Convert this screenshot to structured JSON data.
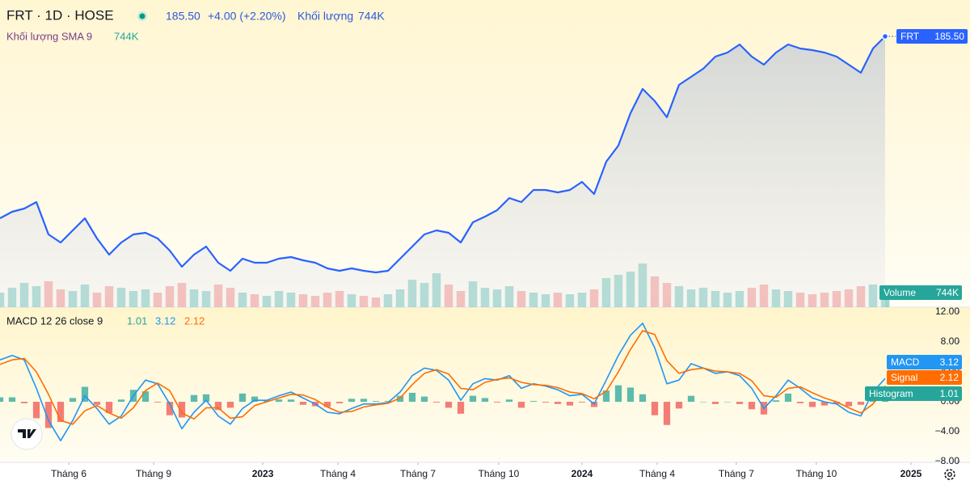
{
  "header": {
    "symbol": "FRT · 1D · HOSE",
    "price": "185.50",
    "change": "+4.00 (+2.20%)",
    "volume_label": "Khối lượng",
    "volume": "744K",
    "sma_label": "Khối lượng SMA 9",
    "sma_value": "744K"
  },
  "chart_data": [
    {
      "type": "area",
      "name": "FRT",
      "color": "#2962ff",
      "xlim": [
        0,
        80
      ],
      "ylim": [
        51.5,
        203.5
      ],
      "values": [
        95.5,
        98.7,
        100.3,
        103.5,
        87.5,
        83.5,
        89.5,
        95.5,
        85.5,
        77.5,
        83.5,
        87.5,
        88.3,
        85.5,
        79.5,
        71.5,
        77.5,
        81.5,
        73.5,
        69.5,
        75.5,
        73.5,
        73.5,
        75.5,
        76.3,
        74.7,
        73.5,
        70.7,
        69.5,
        70.7,
        69.5,
        68.7,
        69.5,
        75.5,
        81.5,
        87.5,
        89.5,
        88.3,
        83.5,
        93.5,
        96.3,
        99.5,
        105.5,
        103.5,
        109.5,
        109.5,
        108.3,
        109.5,
        113.5,
        107.5,
        123.5,
        131.5,
        147.5,
        159.5,
        153.5,
        145.5,
        161.5,
        165.5,
        169.5,
        175.5,
        177.5,
        181.5,
        175.5,
        171.5,
        177.5,
        181.5,
        179.5,
        178.7,
        177.5,
        175.5,
        171.5,
        167.5,
        179.5,
        185.5
      ]
    },
    {
      "type": "volume",
      "name": "Volume",
      "color": "#26a69a",
      "negative_color": "#ef5350",
      "xlim": [
        0,
        80
      ],
      "ylim": [
        0,
        5000000
      ],
      "values": [
        900000,
        1200000,
        1500000,
        1300000,
        1600000,
        1100000,
        1000000,
        1400000,
        900000,
        1300000,
        1200000,
        1000000,
        1100000,
        900000,
        1300000,
        1500000,
        1100000,
        1000000,
        1400000,
        1200000,
        900000,
        800000,
        700000,
        1000000,
        900000,
        800000,
        700000,
        900000,
        1000000,
        800000,
        700000,
        600000,
        800000,
        1100000,
        1700000,
        1500000,
        2100000,
        1400000,
        1000000,
        1600000,
        1200000,
        1100000,
        1300000,
        1000000,
        900000,
        800000,
        900000,
        800000,
        900000,
        1100000,
        1800000,
        2000000,
        2200000,
        2700000,
        1900000,
        1500000,
        1300000,
        1100000,
        1200000,
        1000000,
        900000,
        1000000,
        1200000,
        1400000,
        1100000,
        1000000,
        900000,
        800000,
        900000,
        1000000,
        1100000,
        1300000,
        1400000,
        744000
      ]
    },
    {
      "type": "macd",
      "title": "MACD 12 26 close 9",
      "xlim": [
        0,
        80
      ],
      "ylim": [
        -8.1,
        12.65
      ],
      "yticks": [
        {
          "value": 12,
          "label": "12.00"
        },
        {
          "value": 8,
          "label": "8.00"
        },
        {
          "value": 4,
          "label": "4.00"
        },
        {
          "value": 0,
          "label": "0.00"
        },
        {
          "value": -4,
          "label": "−4.00"
        },
        {
          "value": -8,
          "label": "−8.00"
        }
      ],
      "xticks": [
        {
          "value": 5.67,
          "label": "Tháng 6"
        },
        {
          "value": 12.67,
          "label": "Tháng 9"
        },
        {
          "value": 21.67,
          "label": "2023"
        },
        {
          "value": 27.87,
          "label": "Tháng 4"
        },
        {
          "value": 34.47,
          "label": "Tháng 7"
        },
        {
          "value": 41.13,
          "label": "Tháng 10"
        },
        {
          "value": 48,
          "label": "2024"
        },
        {
          "value": 54.2,
          "label": "Tháng 4"
        },
        {
          "value": 60.73,
          "label": "Tháng 7"
        },
        {
          "value": 67.33,
          "label": "Tháng 10"
        },
        {
          "value": 75.13,
          "label": "2025"
        }
      ],
      "series": [
        {
          "name": "MACD",
          "color": "#2196f3",
          "values": [
            5.6,
            6.2,
            5.6,
            1.8,
            -2.5,
            -5.2,
            -2.5,
            0.8,
            -0.9,
            -3.0,
            -1.9,
            0.8,
            2.9,
            2.4,
            -0.3,
            -3.6,
            -1.4,
            0.2,
            -1.9,
            -3.0,
            -0.9,
            0.2,
            0.2,
            0.8,
            1.3,
            0.5,
            -0.3,
            -1.4,
            -1.6,
            -0.9,
            -0.3,
            -0.3,
            -0.1,
            1.3,
            3.5,
            4.5,
            4.2,
            2.9,
            0.2,
            2.4,
            3.1,
            2.9,
            3.5,
            1.8,
            2.4,
            2.1,
            1.6,
            0.8,
            1.0,
            -0.3,
            2.9,
            6.2,
            8.9,
            10.5,
            7.2,
            2.4,
            2.9,
            5.1,
            4.5,
            3.8,
            4.0,
            3.5,
            1.8,
            -0.9,
            0.8,
            2.9,
            1.8,
            0.5,
            0.0,
            -0.3,
            -1.4,
            -1.9,
            1.3,
            3.12
          ]
        },
        {
          "name": "Signal",
          "color": "#ff6d00",
          "values": [
            5.0,
            5.6,
            5.8,
            4.0,
            1.0,
            -2.5,
            -3.0,
            -1.2,
            -0.5,
            -1.5,
            -2.2,
            -0.8,
            1.5,
            2.5,
            1.5,
            -1.5,
            -2.3,
            -0.8,
            -0.8,
            -2.2,
            -2.0,
            -0.5,
            0.0,
            0.5,
            1.0,
            0.9,
            0.3,
            -0.7,
            -1.4,
            -1.3,
            -0.7,
            -0.4,
            -0.2,
            0.5,
            2.3,
            3.8,
            4.3,
            3.7,
            1.8,
            1.6,
            2.6,
            3.0,
            3.2,
            2.6,
            2.3,
            2.2,
            1.9,
            1.3,
            1.1,
            0.4,
            1.4,
            4.0,
            7.0,
            9.5,
            9.0,
            5.5,
            3.8,
            4.3,
            4.5,
            4.1,
            4.0,
            3.8,
            2.8,
            0.8,
            0.6,
            1.8,
            2.0,
            1.2,
            0.5,
            0.0,
            -0.8,
            -1.5,
            -0.3,
            2.12
          ]
        },
        {
          "name": "Histogram",
          "color": "#26a69a",
          "negative_color": "#ef5350",
          "values": [
            0.6,
            0.6,
            -0.2,
            -2.2,
            -3.5,
            -2.7,
            0.5,
            2.0,
            -0.4,
            -1.5,
            0.3,
            1.6,
            1.4,
            -0.1,
            -1.8,
            -2.1,
            0.9,
            1.0,
            -1.1,
            -0.8,
            1.1,
            0.7,
            0.2,
            0.3,
            0.3,
            -0.4,
            -0.6,
            -0.7,
            -0.2,
            0.4,
            0.4,
            0.1,
            0.1,
            0.8,
            1.2,
            0.7,
            -0.1,
            -0.8,
            -1.6,
            0.8,
            0.5,
            -0.1,
            0.3,
            -0.8,
            0.1,
            -0.1,
            -0.3,
            -0.5,
            -0.1,
            -0.7,
            1.5,
            2.2,
            1.9,
            1.0,
            -1.8,
            -3.1,
            -0.9,
            0.8,
            0.0,
            -0.3,
            0.0,
            -0.3,
            -1.0,
            -1.7,
            0.2,
            1.1,
            -0.2,
            -0.7,
            -0.5,
            -0.3,
            -0.6,
            -0.4,
            1.6,
            1.01
          ]
        }
      ]
    }
  ]
}
